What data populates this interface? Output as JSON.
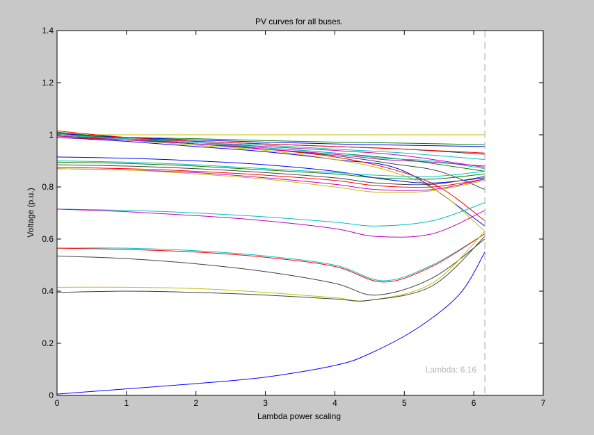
{
  "chart_data": {
    "type": "line",
    "title": "PV curves for all buses.",
    "xlabel": "Lambda power scaling",
    "ylabel": "Voltage (p.u.)",
    "xlim": [
      0,
      7
    ],
    "ylim": [
      0,
      1.4
    ],
    "xticks": [
      "0",
      "1",
      "2",
      "3",
      "4",
      "5",
      "6",
      "7"
    ],
    "yticks": [
      "0",
      "0.2",
      "0.4",
      "0.6",
      "0.8",
      "1",
      "1.2",
      "1.4"
    ],
    "grid": false,
    "annotation": {
      "text": "Lambda: 6.16",
      "x": 6.16
    },
    "colors": [
      "#0000ff",
      "#008000",
      "#ff0000",
      "#00bfbf",
      "#bf00bf",
      "#bfbf00",
      "#404040"
    ],
    "series": [
      {
        "color": "#bfbf00",
        "points": [
          [
            0,
            1.0
          ],
          [
            6.16,
            1.0
          ]
        ]
      },
      {
        "color": "#008000",
        "points": [
          [
            0,
            1.0
          ],
          [
            1,
            0.99
          ],
          [
            2,
            0.985
          ],
          [
            3,
            0.978
          ],
          [
            4,
            0.972
          ],
          [
            5,
            0.968
          ],
          [
            6.16,
            0.962
          ]
        ]
      },
      {
        "color": "#0000ff",
        "points": [
          [
            0,
            1.005
          ],
          [
            1,
            0.99
          ],
          [
            2,
            0.98
          ],
          [
            3,
            0.972
          ],
          [
            4,
            0.965
          ],
          [
            5,
            0.96
          ],
          [
            6.16,
            0.955
          ]
        ]
      },
      {
        "color": "#404040",
        "points": [
          [
            0,
            0.995
          ],
          [
            1,
            0.985
          ],
          [
            2,
            0.975
          ],
          [
            3,
            0.965
          ],
          [
            4,
            0.955
          ],
          [
            5,
            0.945
          ],
          [
            6.16,
            0.925
          ]
        ]
      },
      {
        "color": "#ff0000",
        "points": [
          [
            0,
            1.015
          ],
          [
            1,
            0.99
          ],
          [
            2,
            0.975
          ],
          [
            3,
            0.965
          ],
          [
            4,
            0.955
          ],
          [
            5,
            0.945
          ],
          [
            6.16,
            0.93
          ]
        ]
      },
      {
        "color": "#bf00bf",
        "points": [
          [
            0,
            1.01
          ],
          [
            1,
            0.985
          ],
          [
            2,
            0.97
          ],
          [
            3,
            0.955
          ],
          [
            4,
            0.94
          ],
          [
            5,
            0.92
          ],
          [
            6.16,
            0.875
          ]
        ]
      },
      {
        "color": "#00bfbf",
        "points": [
          [
            0,
            1.0
          ],
          [
            1,
            0.985
          ],
          [
            2,
            0.97
          ],
          [
            3,
            0.96
          ],
          [
            4,
            0.945
          ],
          [
            5,
            0.93
          ],
          [
            6.16,
            0.905
          ]
        ]
      },
      {
        "color": "#008000",
        "points": [
          [
            0,
            1.01
          ],
          [
            1,
            0.985
          ],
          [
            2,
            0.965
          ],
          [
            3,
            0.95
          ],
          [
            4,
            0.93
          ],
          [
            5,
            0.905
          ],
          [
            6.16,
            0.86
          ]
        ]
      },
      {
        "color": "#0000ff",
        "points": [
          [
            0,
            0.99
          ],
          [
            1,
            0.975
          ],
          [
            2,
            0.955
          ],
          [
            3,
            0.935
          ],
          [
            4,
            0.905
          ],
          [
            5,
            0.86
          ],
          [
            6.16,
            0.65
          ]
        ]
      },
      {
        "color": "#404040",
        "points": [
          [
            0,
            1.0
          ],
          [
            1,
            0.985
          ],
          [
            2,
            0.965
          ],
          [
            3,
            0.945
          ],
          [
            4,
            0.92
          ],
          [
            4.8,
            0.89
          ],
          [
            5.5,
            0.86
          ],
          [
            6.16,
            0.79
          ]
        ]
      },
      {
        "color": "#ff0000",
        "points": [
          [
            0,
            0.99
          ],
          [
            1,
            0.98
          ],
          [
            2,
            0.965
          ],
          [
            3,
            0.945
          ],
          [
            4,
            0.915
          ],
          [
            4.8,
            0.87
          ],
          [
            5.5,
            0.8
          ],
          [
            6.16,
            0.67
          ]
        ]
      },
      {
        "color": "#bfbf00",
        "points": [
          [
            0,
            0.995
          ],
          [
            1,
            0.98
          ],
          [
            2,
            0.96
          ],
          [
            3,
            0.94
          ],
          [
            4,
            0.905
          ],
          [
            4.8,
            0.86
          ],
          [
            5.5,
            0.78
          ],
          [
            6.16,
            0.63
          ]
        ]
      },
      {
        "color": "#00bfbf",
        "points": [
          [
            0,
            1.0
          ],
          [
            1,
            0.985
          ],
          [
            2,
            0.97
          ],
          [
            3,
            0.95
          ],
          [
            4,
            0.93
          ],
          [
            4.7,
            0.91
          ],
          [
            5.4,
            0.9
          ],
          [
            6.16,
            0.87
          ]
        ]
      },
      {
        "color": "#bf00bf",
        "points": [
          [
            0,
            0.995
          ],
          [
            1,
            0.98
          ],
          [
            2,
            0.965
          ],
          [
            3,
            0.945
          ],
          [
            4,
            0.925
          ],
          [
            4.7,
            0.905
          ],
          [
            5.4,
            0.895
          ],
          [
            6.16,
            0.88
          ]
        ]
      },
      {
        "color": "#0000ff",
        "points": [
          [
            0,
            0.915
          ],
          [
            1,
            0.91
          ],
          [
            2,
            0.9
          ],
          [
            3,
            0.885
          ],
          [
            4,
            0.86
          ],
          [
            4.7,
            0.83
          ],
          [
            5.4,
            0.815
          ],
          [
            6.16,
            0.835
          ]
        ]
      },
      {
        "color": "#00bfbf",
        "points": [
          [
            0,
            0.9
          ],
          [
            1,
            0.895
          ],
          [
            2,
            0.885
          ],
          [
            3,
            0.87
          ],
          [
            4,
            0.855
          ],
          [
            4.6,
            0.845
          ],
          [
            5.4,
            0.84
          ],
          [
            6.16,
            0.86
          ]
        ]
      },
      {
        "color": "#008000",
        "points": [
          [
            0,
            0.895
          ],
          [
            1,
            0.89
          ],
          [
            2,
            0.88
          ],
          [
            3,
            0.865
          ],
          [
            4,
            0.85
          ],
          [
            4.6,
            0.835
          ],
          [
            5.4,
            0.83
          ],
          [
            6.16,
            0.85
          ]
        ]
      },
      {
        "color": "#404040",
        "points": [
          [
            0,
            0.885
          ],
          [
            1,
            0.88
          ],
          [
            2,
            0.87
          ],
          [
            3,
            0.855
          ],
          [
            4,
            0.835
          ],
          [
            4.6,
            0.815
          ],
          [
            5.4,
            0.81
          ],
          [
            6.16,
            0.84
          ]
        ]
      },
      {
        "color": "#ff0000",
        "points": [
          [
            0,
            0.875
          ],
          [
            1,
            0.87
          ],
          [
            2,
            0.86
          ],
          [
            3,
            0.845
          ],
          [
            4,
            0.825
          ],
          [
            4.6,
            0.805
          ],
          [
            5.4,
            0.8
          ],
          [
            6.16,
            0.83
          ]
        ]
      },
      {
        "color": "#bf00bf",
        "points": [
          [
            0,
            0.87
          ],
          [
            1,
            0.865
          ],
          [
            2,
            0.855
          ],
          [
            3,
            0.835
          ],
          [
            4,
            0.81
          ],
          [
            4.6,
            0.79
          ],
          [
            5.4,
            0.79
          ],
          [
            6.16,
            0.83
          ]
        ]
      },
      {
        "color": "#bfbf00",
        "points": [
          [
            0,
            0.87
          ],
          [
            1,
            0.865
          ],
          [
            2,
            0.85
          ],
          [
            3,
            0.83
          ],
          [
            4,
            0.8
          ],
          [
            4.6,
            0.78
          ],
          [
            5.4,
            0.785
          ],
          [
            6.16,
            0.825
          ]
        ]
      },
      {
        "color": "#00bfbf",
        "points": [
          [
            0,
            0.715
          ],
          [
            1,
            0.71
          ],
          [
            2,
            0.7
          ],
          [
            3,
            0.685
          ],
          [
            4,
            0.665
          ],
          [
            4.6,
            0.65
          ],
          [
            5.4,
            0.67
          ],
          [
            6.16,
            0.74
          ]
        ]
      },
      {
        "color": "#bf00bf",
        "points": [
          [
            0,
            0.715
          ],
          [
            1,
            0.705
          ],
          [
            2,
            0.69
          ],
          [
            3,
            0.67
          ],
          [
            4,
            0.64
          ],
          [
            4.6,
            0.61
          ],
          [
            5.4,
            0.62
          ],
          [
            6.16,
            0.71
          ]
        ]
      },
      {
        "color": "#00bfbf",
        "points": [
          [
            0,
            0.565
          ],
          [
            1,
            0.565
          ],
          [
            2,
            0.555
          ],
          [
            3,
            0.535
          ],
          [
            4,
            0.5
          ],
          [
            4.7,
            0.44
          ],
          [
            5.4,
            0.5
          ],
          [
            6.16,
            0.62
          ]
        ]
      },
      {
        "color": "#ff0000",
        "points": [
          [
            0,
            0.565
          ],
          [
            1,
            0.56
          ],
          [
            2,
            0.55
          ],
          [
            3,
            0.53
          ],
          [
            4,
            0.495
          ],
          [
            4.7,
            0.435
          ],
          [
            5.4,
            0.495
          ],
          [
            6.16,
            0.62
          ]
        ]
      },
      {
        "color": "#404040",
        "points": [
          [
            0,
            0.535
          ],
          [
            1,
            0.525
          ],
          [
            2,
            0.505
          ],
          [
            3,
            0.475
          ],
          [
            4,
            0.43
          ],
          [
            4.6,
            0.385
          ],
          [
            5.4,
            0.45
          ],
          [
            6.16,
            0.6
          ]
        ]
      },
      {
        "color": "#bfbf00",
        "points": [
          [
            0,
            0.415
          ],
          [
            1,
            0.415
          ],
          [
            2,
            0.41
          ],
          [
            3,
            0.395
          ],
          [
            4,
            0.375
          ],
          [
            4.5,
            0.365
          ],
          [
            5.4,
            0.43
          ],
          [
            6.16,
            0.63
          ]
        ]
      },
      {
        "color": "#404040",
        "points": [
          [
            0,
            0.395
          ],
          [
            1,
            0.4
          ],
          [
            2,
            0.395
          ],
          [
            3,
            0.385
          ],
          [
            4,
            0.37
          ],
          [
            4.5,
            0.365
          ],
          [
            5.4,
            0.42
          ],
          [
            6.16,
            0.61
          ]
        ]
      },
      {
        "color": "#0000ff",
        "points": [
          [
            0,
            0.005
          ],
          [
            1,
            0.025
          ],
          [
            2,
            0.045
          ],
          [
            3,
            0.07
          ],
          [
            4,
            0.115
          ],
          [
            4.5,
            0.16
          ],
          [
            5.2,
            0.26
          ],
          [
            5.8,
            0.39
          ],
          [
            6.16,
            0.55
          ]
        ]
      }
    ]
  }
}
